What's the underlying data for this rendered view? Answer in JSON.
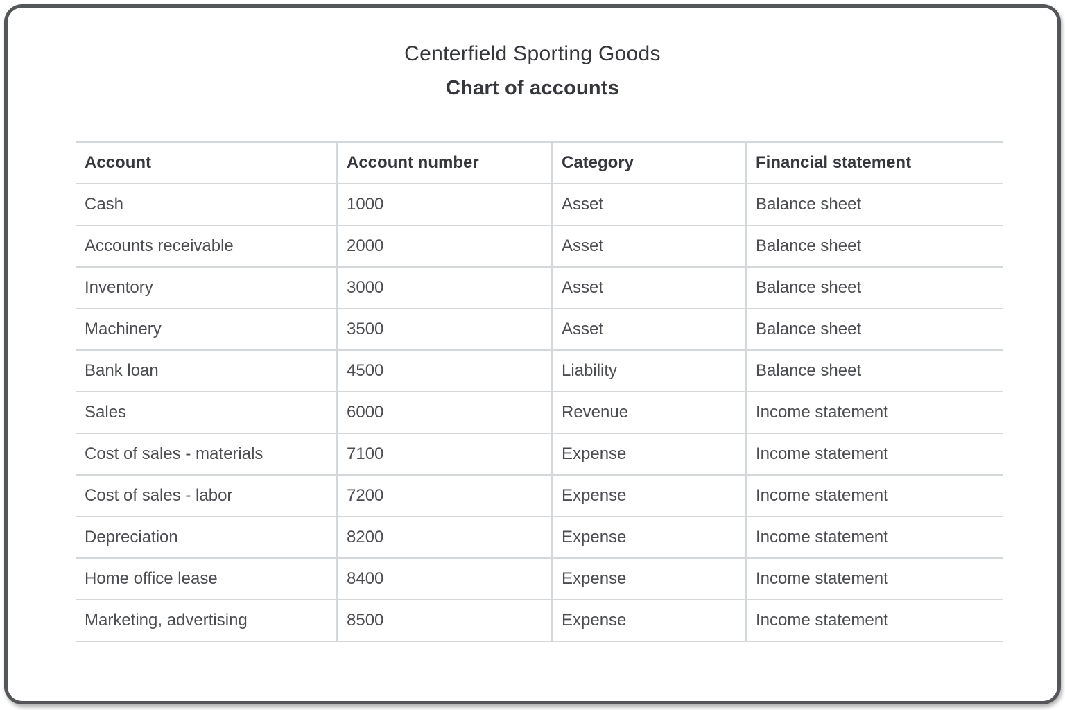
{
  "title": "Centerfield Sporting Goods",
  "subtitle": "Chart of accounts",
  "table": {
    "columns": [
      "Account",
      "Account number",
      "Category",
      "Financial statement"
    ],
    "rows": [
      {
        "account": "Cash",
        "number": "1000",
        "category": "Asset",
        "statement": "Balance sheet"
      },
      {
        "account": "Accounts receivable",
        "number": "2000",
        "category": "Asset",
        "statement": "Balance sheet"
      },
      {
        "account": "Inventory",
        "number": "3000",
        "category": "Asset",
        "statement": "Balance sheet"
      },
      {
        "account": "Machinery",
        "number": "3500",
        "category": "Asset",
        "statement": "Balance sheet"
      },
      {
        "account": "Bank loan",
        "number": "4500",
        "category": "Liability",
        "statement": "Balance sheet"
      },
      {
        "account": "Sales",
        "number": "6000",
        "category": "Revenue",
        "statement": "Income statement"
      },
      {
        "account": "Cost of sales - materials",
        "number": "7100",
        "category": "Expense",
        "statement": "Income statement"
      },
      {
        "account": "Cost of sales - labor",
        "number": "7200",
        "category": "Expense",
        "statement": "Income statement"
      },
      {
        "account": "Depreciation",
        "number": "8200",
        "category": "Expense",
        "statement": "Income statement"
      },
      {
        "account": "Home office lease",
        "number": "8400",
        "category": "Expense",
        "statement": "Income statement"
      },
      {
        "account": "Marketing, advertising",
        "number": "8500",
        "category": "Expense",
        "statement": "Income statement"
      }
    ]
  },
  "colors": {
    "frame-border": "#55565a",
    "grid": "#d5d8db",
    "heading-text": "#35373c",
    "body-text": "#4c4d52",
    "bg": "#ffffff"
  }
}
